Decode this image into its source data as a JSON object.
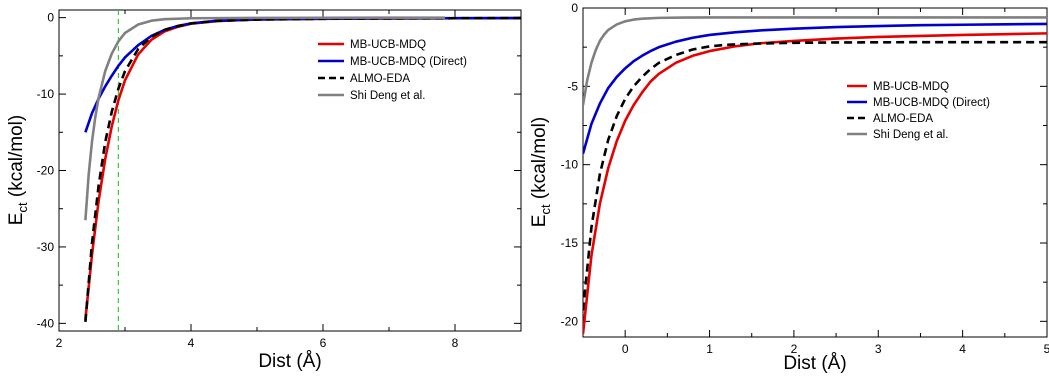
{
  "chart_data": [
    {
      "type": "line",
      "xlabel": "Dist (Å)",
      "ylabel": "E_ct (kcal/mol)",
      "ylabel_main": "E",
      "ylabel_sub": "ct",
      "ylabel_rest": " (kcal/mol)",
      "xlim": [
        2,
        9
      ],
      "ylim": [
        -41,
        1
      ],
      "x_ticks": [
        2,
        4,
        6,
        8
      ],
      "y_ticks": [
        0,
        -10,
        -20,
        -30,
        -40
      ],
      "x_tick_labels": [
        "2",
        "4",
        "6",
        "8"
      ],
      "y_tick_labels": [
        "0",
        "-10",
        "-20",
        "-30",
        "-40"
      ],
      "x_minor_ticks": [
        3,
        5,
        7,
        9
      ],
      "y_minor_ticks": [
        -5,
        -15,
        -25,
        -35
      ],
      "legend_position": "top-right",
      "vline": {
        "x": 2.9,
        "color": "#33cc33",
        "style": "dashed"
      },
      "series": [
        {
          "name": "MB-UCB-MDQ",
          "color": "#e60000",
          "dash": "",
          "x": [
            2.4,
            2.5,
            2.6,
            2.7,
            2.8,
            2.9,
            3.0,
            3.2,
            3.4,
            3.6,
            3.8,
            4.0,
            4.4,
            5.0,
            6.0,
            7.0,
            8.0,
            9.0
          ],
          "y": [
            -39.5,
            -31.0,
            -24.0,
            -18.5,
            -14.2,
            -10.8,
            -8.2,
            -4.8,
            -2.9,
            -1.8,
            -1.2,
            -0.8,
            -0.45,
            -0.25,
            -0.15,
            -0.1,
            -0.08,
            -0.06
          ]
        },
        {
          "name": "MB-UCB-MDQ (Direct)",
          "color": "#0000cc",
          "dash": "",
          "x": [
            2.4,
            2.5,
            2.6,
            2.7,
            2.8,
            2.9,
            3.0,
            3.2,
            3.4,
            3.6,
            3.8,
            4.0,
            4.4,
            5.0,
            6.0,
            7.0,
            8.0,
            9.0
          ],
          "y": [
            -15.0,
            -12.5,
            -10.6,
            -9.0,
            -7.6,
            -6.3,
            -5.2,
            -3.6,
            -2.4,
            -1.6,
            -1.1,
            -0.75,
            -0.4,
            -0.22,
            -0.13,
            -0.09,
            -0.07,
            -0.05
          ]
        },
        {
          "name": "ALMO-EDA",
          "color": "#000000",
          "dash": "8,5",
          "x": [
            2.4,
            2.5,
            2.6,
            2.7,
            2.8,
            2.9,
            3.0,
            3.2,
            3.4,
            3.6,
            3.8,
            4.0,
            4.4,
            5.0,
            6.0,
            7.0,
            8.0,
            9.0
          ],
          "y": [
            -39.8,
            -29.5,
            -22.0,
            -16.3,
            -12.3,
            -9.3,
            -7.0,
            -4.1,
            -2.5,
            -1.6,
            -1.1,
            -0.75,
            -0.42,
            -0.25,
            -0.15,
            -0.1,
            -0.08,
            -0.06
          ]
        },
        {
          "name": "Shi Deng et al.",
          "color": "#808080",
          "dash": "",
          "x": [
            2.4,
            2.45,
            2.5,
            2.55,
            2.6,
            2.7,
            2.8,
            2.9,
            3.0,
            3.2,
            3.4,
            3.6,
            4.0,
            5.0,
            6.0,
            7.0,
            7.85
          ],
          "y": [
            -26.5,
            -20.5,
            -16.2,
            -13.0,
            -10.5,
            -7.0,
            -4.7,
            -3.1,
            -2.0,
            -0.9,
            -0.4,
            -0.2,
            -0.08,
            -0.03,
            -0.02,
            -0.01,
            -0.01
          ]
        }
      ]
    },
    {
      "type": "line",
      "xlabel": "Dist (Å)",
      "ylabel": "E_ct (kcal/mol)",
      "ylabel_main": "E",
      "ylabel_sub": "ct",
      "ylabel_rest": " (kcal/mol)",
      "xlim": [
        -0.5,
        5
      ],
      "ylim": [
        -21,
        0
      ],
      "x_ticks": [
        0,
        1,
        2,
        3,
        4,
        5
      ],
      "y_ticks": [
        0,
        -5,
        -10,
        -15,
        -20
      ],
      "x_tick_labels": [
        "0",
        "1",
        "2",
        "3",
        "4",
        "5"
      ],
      "y_tick_labels": [
        "0",
        "-5",
        "-10",
        "-15",
        "-20"
      ],
      "x_minor_ticks": [
        0.5,
        1.5,
        2.5,
        3.5,
        4.5
      ],
      "y_minor_ticks": [
        -2.5,
        -7.5,
        -12.5,
        -17.5
      ],
      "legend_position": "center-right",
      "series": [
        {
          "name": "MB-UCB-MDQ",
          "color": "#e60000",
          "dash": "",
          "x": [
            -0.5,
            -0.4,
            -0.3,
            -0.2,
            -0.1,
            0.0,
            0.1,
            0.2,
            0.3,
            0.4,
            0.6,
            0.8,
            1.0,
            1.3,
            1.6,
            2.0,
            2.5,
            3.0,
            3.5,
            4.0,
            4.5,
            5.0
          ],
          "y": [
            -20.8,
            -15.8,
            -12.5,
            -10.2,
            -8.5,
            -7.2,
            -6.2,
            -5.4,
            -4.7,
            -4.2,
            -3.5,
            -3.05,
            -2.75,
            -2.45,
            -2.25,
            -2.1,
            -1.95,
            -1.85,
            -1.78,
            -1.72,
            -1.67,
            -1.62
          ]
        },
        {
          "name": "MB-UCB-MDQ (Direct)",
          "color": "#0000cc",
          "dash": "",
          "x": [
            -0.5,
            -0.4,
            -0.3,
            -0.2,
            -0.1,
            0.0,
            0.1,
            0.2,
            0.3,
            0.4,
            0.6,
            0.8,
            1.0,
            1.3,
            1.6,
            2.0,
            2.5,
            3.0,
            3.5,
            4.0,
            4.5,
            5.0
          ],
          "y": [
            -9.3,
            -7.4,
            -6.1,
            -5.1,
            -4.4,
            -3.85,
            -3.4,
            -3.05,
            -2.75,
            -2.5,
            -2.15,
            -1.9,
            -1.72,
            -1.55,
            -1.43,
            -1.32,
            -1.22,
            -1.15,
            -1.1,
            -1.07,
            -1.04,
            -1.02
          ]
        },
        {
          "name": "ALMO-EDA",
          "color": "#000000",
          "dash": "8,5",
          "x": [
            -0.5,
            -0.4,
            -0.3,
            -0.2,
            -0.1,
            0.0,
            0.1,
            0.2,
            0.3,
            0.4,
            0.6,
            0.8,
            1.0,
            1.2,
            1.5,
            2.0,
            2.5,
            3.0,
            3.5,
            4.0,
            4.5,
            5.0
          ],
          "y": [
            -19.3,
            -14.0,
            -10.6,
            -8.4,
            -6.9,
            -5.8,
            -5.0,
            -4.4,
            -3.9,
            -3.5,
            -3.0,
            -2.65,
            -2.45,
            -2.35,
            -2.28,
            -2.22,
            -2.2,
            -2.19,
            -2.18,
            -2.18,
            -2.18,
            -2.18
          ]
        },
        {
          "name": "Shi Deng et al.",
          "color": "#808080",
          "dash": "",
          "x": [
            -0.5,
            -0.45,
            -0.4,
            -0.35,
            -0.3,
            -0.25,
            -0.2,
            -0.1,
            0.0,
            0.1,
            0.2,
            0.4,
            0.7,
            1.0,
            2.0,
            3.0,
            4.0,
            5.0
          ],
          "y": [
            -6.2,
            -4.6,
            -3.5,
            -2.7,
            -2.1,
            -1.7,
            -1.4,
            -1.05,
            -0.85,
            -0.74,
            -0.68,
            -0.63,
            -0.61,
            -0.6,
            -0.6,
            -0.6,
            -0.6,
            -0.6
          ]
        }
      ]
    }
  ]
}
